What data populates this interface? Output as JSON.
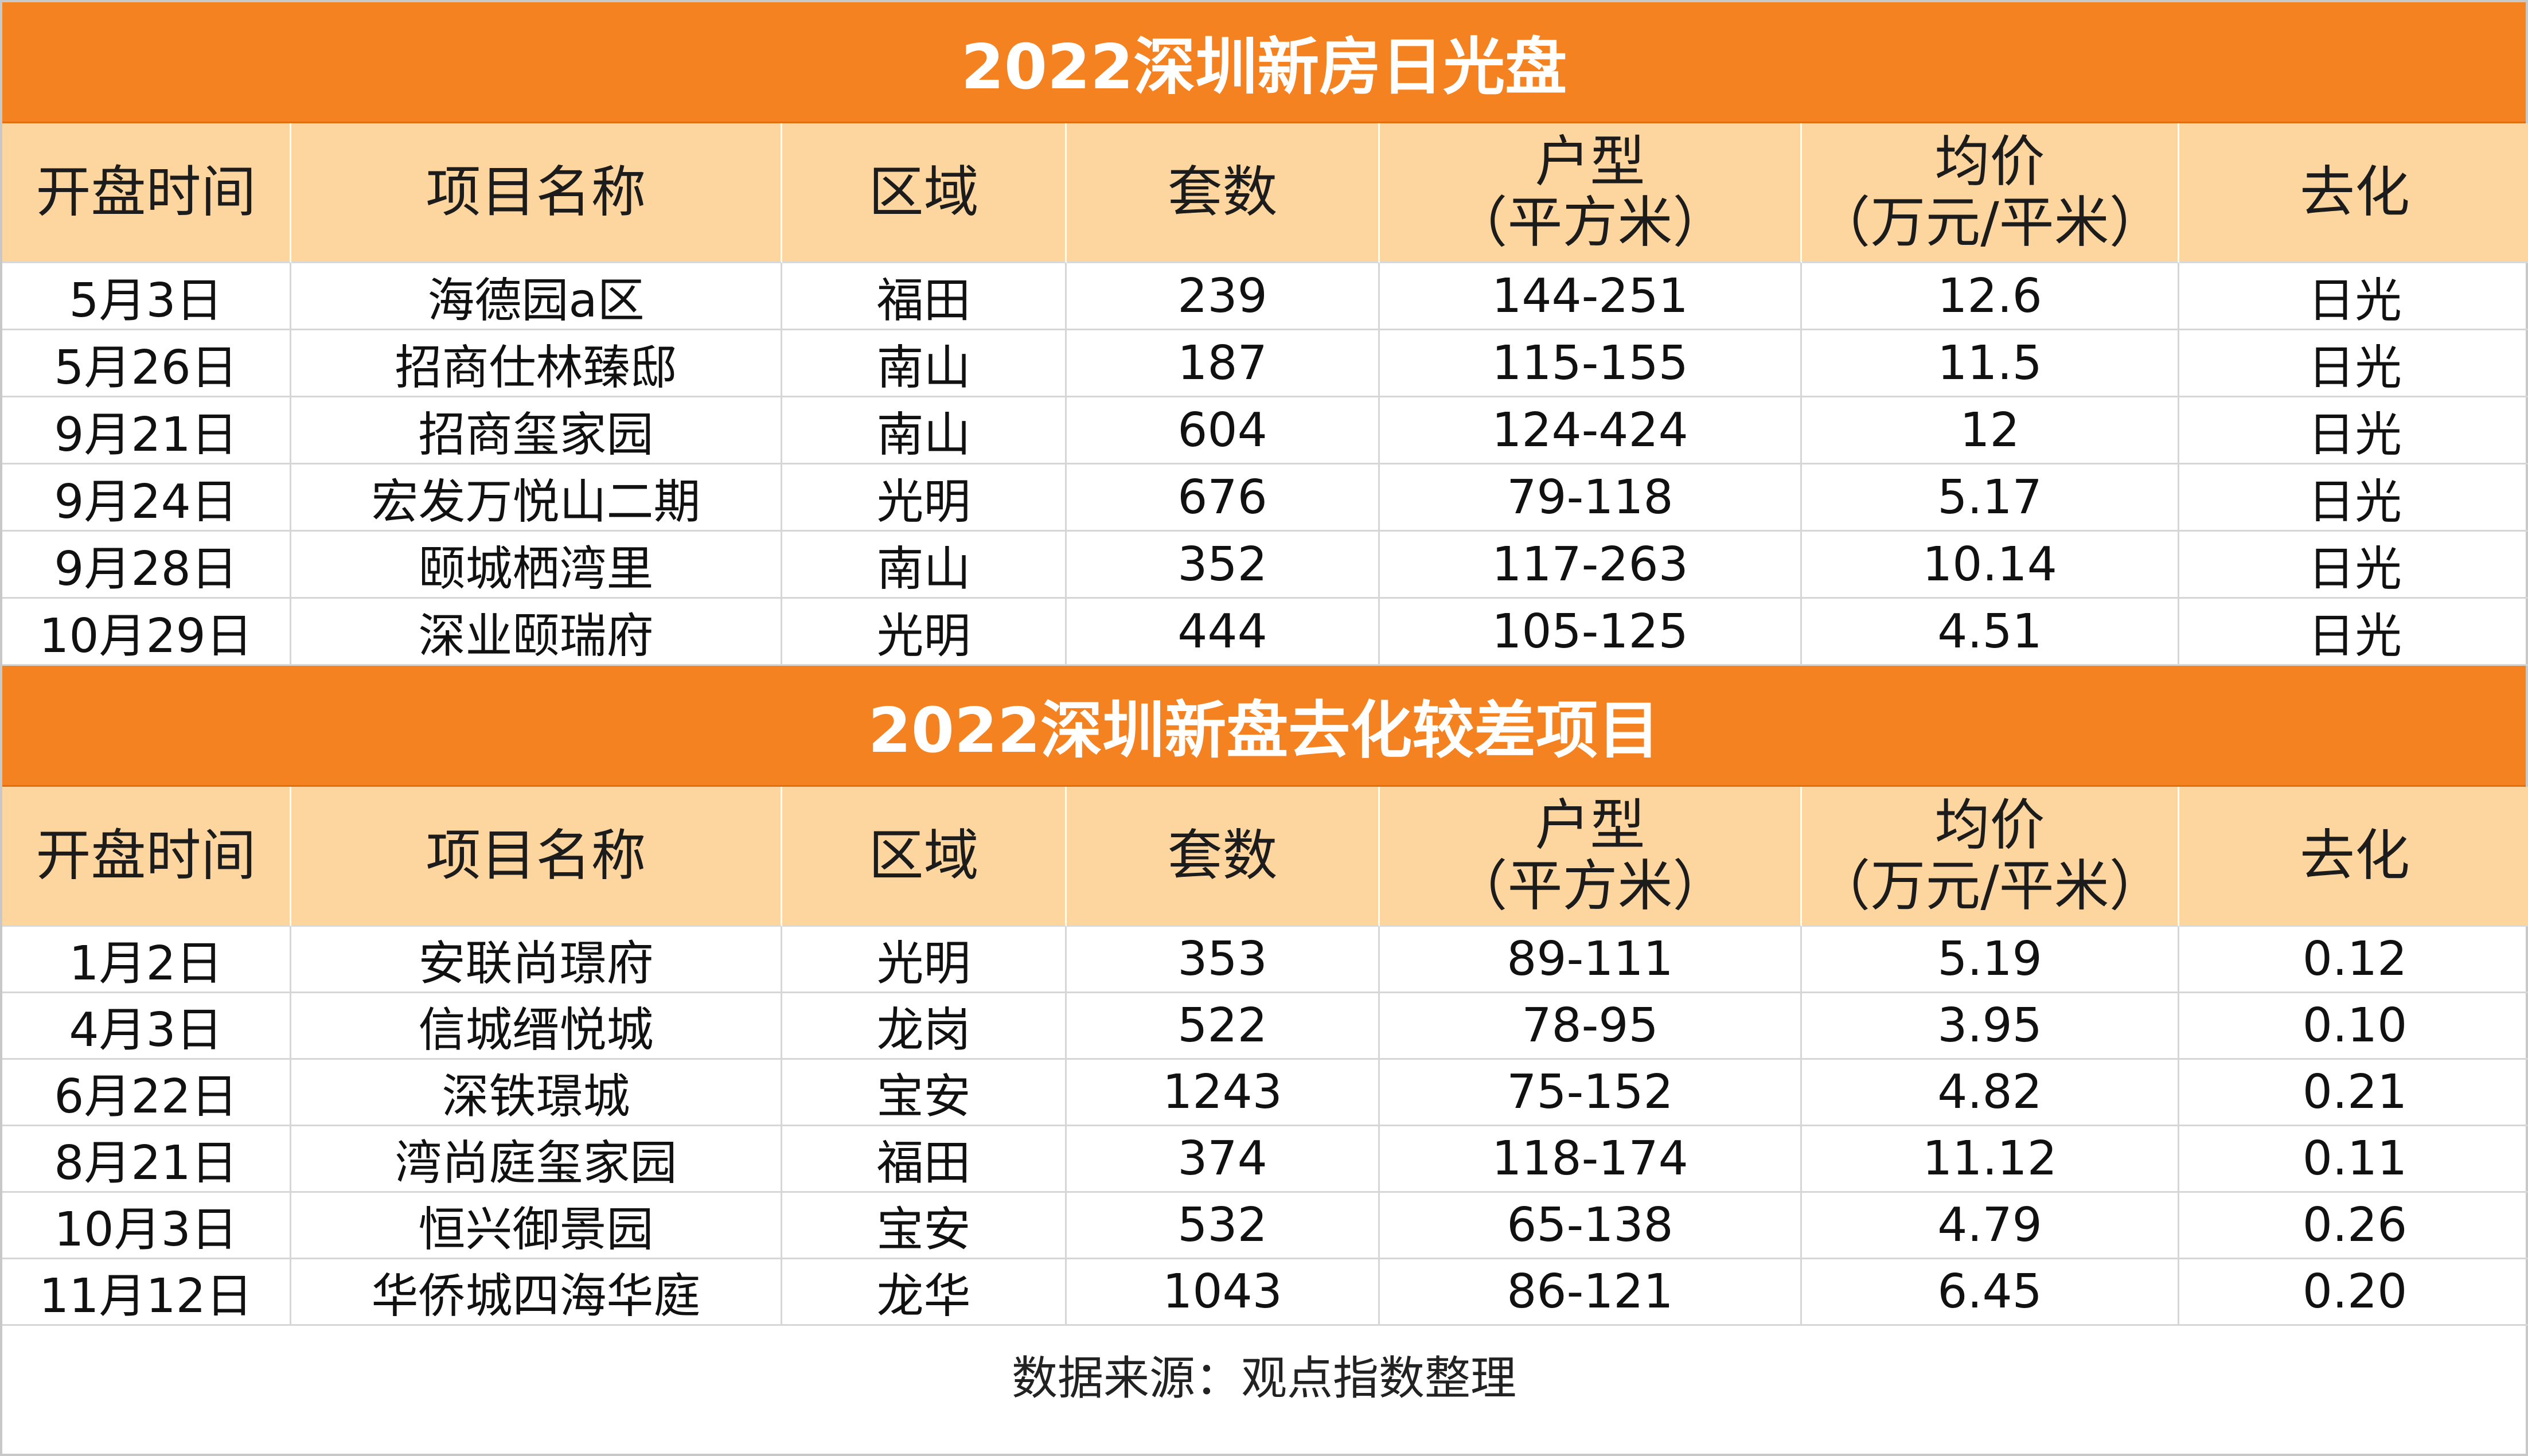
{
  "table1": {
    "title": "2022深圳新房日光盘",
    "headers": [
      {
        "line1": "开盘时间",
        "line2": ""
      },
      {
        "line1": "项目名称",
        "line2": ""
      },
      {
        "line1": "区域",
        "line2": ""
      },
      {
        "line1": "套数",
        "line2": ""
      },
      {
        "line1": "户型",
        "line2": "（平方米）"
      },
      {
        "line1": "均价",
        "line2": "（万元/平米）"
      },
      {
        "line1": "去化",
        "line2": ""
      }
    ],
    "rows": [
      [
        "5月3日",
        "海德园a区",
        "福田",
        "239",
        "144-251",
        "12.6",
        "日光"
      ],
      [
        "5月26日",
        "招商仕林臻邸",
        "南山",
        "187",
        "115-155",
        "11.5",
        "日光"
      ],
      [
        "9月21日",
        "招商玺家园",
        "南山",
        "604",
        "124-424",
        "12",
        "日光"
      ],
      [
        "9月24日",
        "宏发万悦山二期",
        "光明",
        "676",
        "79-118",
        "5.17",
        "日光"
      ],
      [
        "9月28日",
        "颐城栖湾里",
        "南山",
        "352",
        "117-263",
        "10.14",
        "日光"
      ],
      [
        "10月29日",
        "深业颐瑞府",
        "光明",
        "444",
        "105-125",
        "4.51",
        "日光"
      ]
    ]
  },
  "table2": {
    "title": "2022深圳新盘去化较差项目",
    "headers": [
      {
        "line1": "开盘时间",
        "line2": ""
      },
      {
        "line1": "项目名称",
        "line2": ""
      },
      {
        "line1": "区域",
        "line2": ""
      },
      {
        "line1": "套数",
        "line2": ""
      },
      {
        "line1": "户型",
        "line2": "（平方米）"
      },
      {
        "line1": "均价",
        "line2": "（万元/平米）"
      },
      {
        "line1": "去化",
        "line2": ""
      }
    ],
    "rows": [
      [
        "1月2日",
        "安联尚璟府",
        "光明",
        "353",
        "89-111",
        "5.19",
        "0.12"
      ],
      [
        "4月3日",
        "信城缙悦城",
        "龙岗",
        "522",
        "78-95",
        "3.95",
        "0.10"
      ],
      [
        "6月22日",
        "深铁璟城",
        "宝安",
        "1243",
        "75-152",
        "4.82",
        "0.21"
      ],
      [
        "8月21日",
        "湾尚庭玺家园",
        "福田",
        "374",
        "118-174",
        "11.12",
        "0.11"
      ],
      [
        "10月3日",
        "恒兴御景园",
        "宝安",
        "532",
        "65-138",
        "4.79",
        "0.26"
      ],
      [
        "11月12日",
        "华侨城四海华庭",
        "龙华",
        "1043",
        "86-121",
        "6.45",
        "0.20"
      ]
    ]
  },
  "footer": {
    "source": "数据来源：观点指数整理"
  },
  "colors": {
    "title_bg": "#f58220",
    "header_bg": "#fdd59e"
  }
}
